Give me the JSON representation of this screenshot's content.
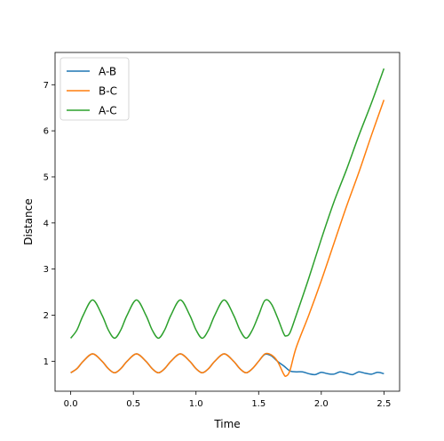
{
  "chart_data": {
    "type": "line",
    "title": "",
    "xlabel": "Time",
    "ylabel": "Distance",
    "xlim": [
      -0.125,
      2.625
    ],
    "ylim": [
      0.35,
      7.7
    ],
    "xticks": [
      "0.0",
      "0.5",
      "1.0",
      "1.5",
      "2.0",
      "2.5"
    ],
    "yticks": [
      "1",
      "2",
      "3",
      "4",
      "5",
      "6",
      "7"
    ],
    "legend_position": "top-left",
    "grid": false,
    "series": [
      {
        "name": "A-B",
        "color": "#1f77b4",
        "points": [
          [
            0,
            0.75
          ],
          [
            0.05,
            0.84
          ],
          [
            0.1,
            1.0
          ],
          [
            0.175,
            1.16
          ],
          [
            0.25,
            1.0
          ],
          [
            0.3,
            0.84
          ],
          [
            0.35,
            0.75
          ],
          [
            0.4,
            0.84
          ],
          [
            0.45,
            1.0
          ],
          [
            0.525,
            1.16
          ],
          [
            0.6,
            1.0
          ],
          [
            0.65,
            0.84
          ],
          [
            0.7,
            0.75
          ],
          [
            0.75,
            0.84
          ],
          [
            0.8,
            1.0
          ],
          [
            0.875,
            1.16
          ],
          [
            0.95,
            1.0
          ],
          [
            1.0,
            0.84
          ],
          [
            1.05,
            0.75
          ],
          [
            1.1,
            0.84
          ],
          [
            1.15,
            1.0
          ],
          [
            1.225,
            1.16
          ],
          [
            1.3,
            1.0
          ],
          [
            1.35,
            0.84
          ],
          [
            1.4,
            0.75
          ],
          [
            1.45,
            0.84
          ],
          [
            1.5,
            1.0
          ],
          [
            1.55,
            1.15
          ],
          [
            1.6,
            1.12
          ],
          [
            1.65,
            1.0
          ],
          [
            1.7,
            0.9
          ],
          [
            1.75,
            0.79
          ],
          [
            1.8,
            0.77
          ],
          [
            1.85,
            0.77
          ],
          [
            1.9,
            0.73
          ],
          [
            1.95,
            0.71
          ],
          [
            2.0,
            0.76
          ],
          [
            2.05,
            0.73
          ],
          [
            2.1,
            0.72
          ],
          [
            2.15,
            0.77
          ],
          [
            2.2,
            0.74
          ],
          [
            2.25,
            0.71
          ],
          [
            2.3,
            0.77
          ],
          [
            2.35,
            0.74
          ],
          [
            2.4,
            0.72
          ],
          [
            2.45,
            0.76
          ],
          [
            2.5,
            0.73
          ]
        ]
      },
      {
        "name": "B-C",
        "color": "#ff7f0e",
        "points": [
          [
            0,
            0.75
          ],
          [
            0.05,
            0.84
          ],
          [
            0.1,
            1.0
          ],
          [
            0.175,
            1.16
          ],
          [
            0.25,
            1.0
          ],
          [
            0.3,
            0.84
          ],
          [
            0.35,
            0.75
          ],
          [
            0.4,
            0.84
          ],
          [
            0.45,
            1.0
          ],
          [
            0.525,
            1.16
          ],
          [
            0.6,
            1.0
          ],
          [
            0.65,
            0.84
          ],
          [
            0.7,
            0.75
          ],
          [
            0.75,
            0.84
          ],
          [
            0.8,
            1.0
          ],
          [
            0.875,
            1.16
          ],
          [
            0.95,
            1.0
          ],
          [
            1.0,
            0.84
          ],
          [
            1.05,
            0.75
          ],
          [
            1.1,
            0.84
          ],
          [
            1.15,
            1.0
          ],
          [
            1.225,
            1.16
          ],
          [
            1.3,
            1.0
          ],
          [
            1.35,
            0.84
          ],
          [
            1.4,
            0.75
          ],
          [
            1.45,
            0.84
          ],
          [
            1.5,
            1.0
          ],
          [
            1.55,
            1.16
          ],
          [
            1.6,
            1.14
          ],
          [
            1.65,
            1.0
          ],
          [
            1.7,
            0.72
          ],
          [
            1.72,
            0.68
          ],
          [
            1.75,
            0.8
          ],
          [
            1.8,
            1.3
          ],
          [
            1.9,
            2.0
          ],
          [
            2.0,
            2.75
          ],
          [
            2.1,
            3.55
          ],
          [
            2.2,
            4.35
          ],
          [
            2.3,
            5.1
          ],
          [
            2.4,
            5.9
          ],
          [
            2.5,
            6.67
          ]
        ]
      },
      {
        "name": "A-C",
        "color": "#2ca02c",
        "points": [
          [
            0,
            1.5
          ],
          [
            0.05,
            1.68
          ],
          [
            0.1,
            2.0
          ],
          [
            0.175,
            2.33
          ],
          [
            0.25,
            2.0
          ],
          [
            0.3,
            1.68
          ],
          [
            0.35,
            1.5
          ],
          [
            0.4,
            1.68
          ],
          [
            0.45,
            2.0
          ],
          [
            0.525,
            2.33
          ],
          [
            0.6,
            2.0
          ],
          [
            0.65,
            1.68
          ],
          [
            0.7,
            1.5
          ],
          [
            0.75,
            1.68
          ],
          [
            0.8,
            2.0
          ],
          [
            0.875,
            2.33
          ],
          [
            0.95,
            2.0
          ],
          [
            1.0,
            1.68
          ],
          [
            1.05,
            1.5
          ],
          [
            1.1,
            1.68
          ],
          [
            1.15,
            2.0
          ],
          [
            1.225,
            2.33
          ],
          [
            1.3,
            2.0
          ],
          [
            1.35,
            1.68
          ],
          [
            1.4,
            1.5
          ],
          [
            1.45,
            1.68
          ],
          [
            1.5,
            2.0
          ],
          [
            1.55,
            2.32
          ],
          [
            1.6,
            2.25
          ],
          [
            1.65,
            1.95
          ],
          [
            1.7,
            1.6
          ],
          [
            1.72,
            1.55
          ],
          [
            1.75,
            1.62
          ],
          [
            1.8,
            2.0
          ],
          [
            1.9,
            2.8
          ],
          [
            2.0,
            3.65
          ],
          [
            2.1,
            4.45
          ],
          [
            2.2,
            5.15
          ],
          [
            2.3,
            5.9
          ],
          [
            2.4,
            6.6
          ],
          [
            2.5,
            7.35
          ]
        ]
      }
    ]
  }
}
